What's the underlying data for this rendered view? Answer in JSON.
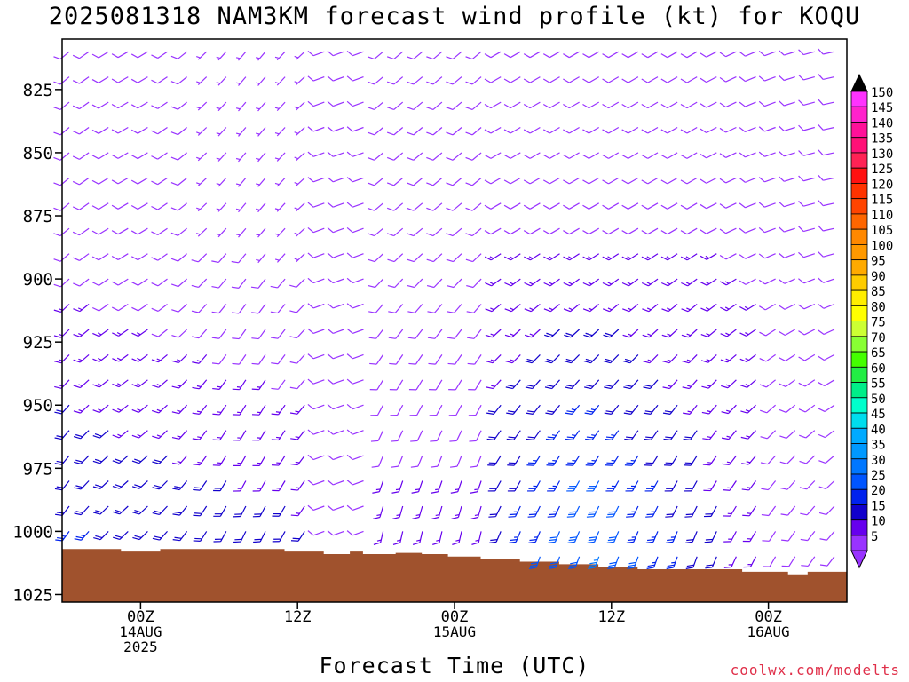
{
  "chart_data": {
    "type": "wind_barb_time_height",
    "title": "2025081318 NAM3KM forecast wind profile (kt) for KOQU",
    "xlabel": "Forecast Time (UTC)",
    "credit": "coolwx.com/modelts",
    "y_axis": {
      "label": "",
      "ticks": [
        "825",
        "850",
        "875",
        "900",
        "925",
        "950",
        "975",
        "1000",
        "1025"
      ],
      "ylim_hpa": [
        805,
        1028
      ],
      "inverted": true
    },
    "x_axis": {
      "ticks": [
        {
          "hour": 6,
          "lines": [
            "00Z",
            "14AUG",
            "2025"
          ]
        },
        {
          "hour": 18,
          "lines": [
            "12Z"
          ]
        },
        {
          "hour": 30,
          "lines": [
            "00Z",
            "15AUG"
          ]
        },
        {
          "hour": 42,
          "lines": [
            "12Z"
          ]
        },
        {
          "hour": 54,
          "lines": [
            "00Z",
            "16AUG"
          ]
        }
      ],
      "xlim_hours": [
        0,
        60
      ]
    },
    "colorbar": {
      "values": [
        "150",
        "145",
        "140",
        "135",
        "130",
        "125",
        "120",
        "115",
        "110",
        "105",
        "100",
        "95",
        "90",
        "85",
        "80",
        "75",
        "70",
        "65",
        "60",
        "55",
        "50",
        "45",
        "40",
        "35",
        "30",
        "25",
        "20",
        "15",
        "10",
        "5"
      ],
      "colors": [
        "#ff33ff",
        "#ff22cc",
        "#ff1199",
        "#ff1177",
        "#ff2255",
        "#ff1111",
        "#ff3300",
        "#ff4400",
        "#ff6600",
        "#ff8800",
        "#ff9900",
        "#ffaa00",
        "#ffcc00",
        "#ffee00",
        "#ffff00",
        "#ccff33",
        "#88ff33",
        "#44ff00",
        "#22ee44",
        "#00ee88",
        "#00ffcc",
        "#00ddee",
        "#00aaff",
        "#0099ff",
        "#0077ff",
        "#0055ff",
        "#0022ee",
        "#1100cc",
        "#6600ee",
        "#9933ff"
      ],
      "arrow_top": "#000000",
      "arrow_bottom": "#9933ff"
    },
    "terrain_color": "#a0522d",
    "series": [
      {
        "name": "",
        "levels_hpa": [
          810,
          820,
          830,
          840,
          850,
          860,
          870,
          880,
          890,
          900,
          910,
          920,
          930,
          940,
          950,
          960,
          970,
          980,
          990,
          1000,
          1010
        ],
        "time_steps_hours": [
          0,
          1.5,
          3,
          4.5,
          6,
          7.5,
          9,
          10.5,
          12,
          13.5,
          15,
          16.5,
          18,
          19.5,
          21,
          22.5,
          24,
          25.5,
          27,
          28.5,
          30,
          31.5,
          33,
          34.5,
          36,
          37.5,
          39,
          40.5,
          42,
          43.5,
          45,
          46.5,
          48,
          49.5,
          51,
          52.5,
          54,
          55.5,
          57,
          58.5
        ]
      }
    ]
  }
}
